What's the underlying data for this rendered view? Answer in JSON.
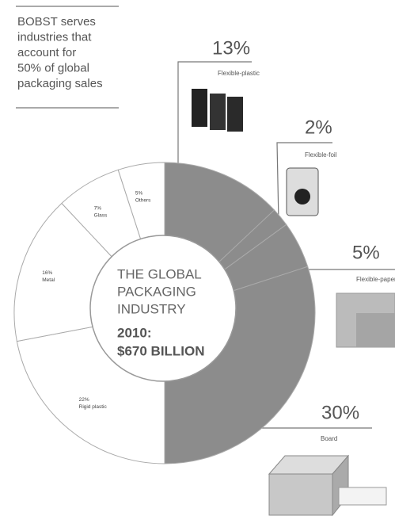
{
  "chart_data": {
    "type": "donut",
    "note": [
      "BOBST serves",
      "industries that",
      "account for",
      "50% of global",
      "packaging sales"
    ],
    "center_text": [
      "THE GLOBAL",
      "PACKAGING",
      "INDUSTRY"
    ],
    "center_total": [
      "2010:",
      "$670 BILLION"
    ],
    "categories": [
      "Flexible-plastic",
      "Flexible-foil",
      "Flexible-paper",
      "Board",
      "Rigid plastic",
      "Metal",
      "Glass",
      "Others"
    ],
    "values": [
      13,
      2,
      5,
      30,
      22,
      16,
      7,
      5
    ],
    "value_labels": [
      "13%",
      "2%",
      "5%",
      "30%",
      "22%",
      "16%",
      "7%",
      "5%"
    ],
    "colors": [
      "#8c8c8c",
      "#8c8c8c",
      "#8c8c8c",
      "#8c8c8c",
      "#ffffff",
      "#ffffff",
      "#ffffff",
      "#ffffff"
    ]
  }
}
